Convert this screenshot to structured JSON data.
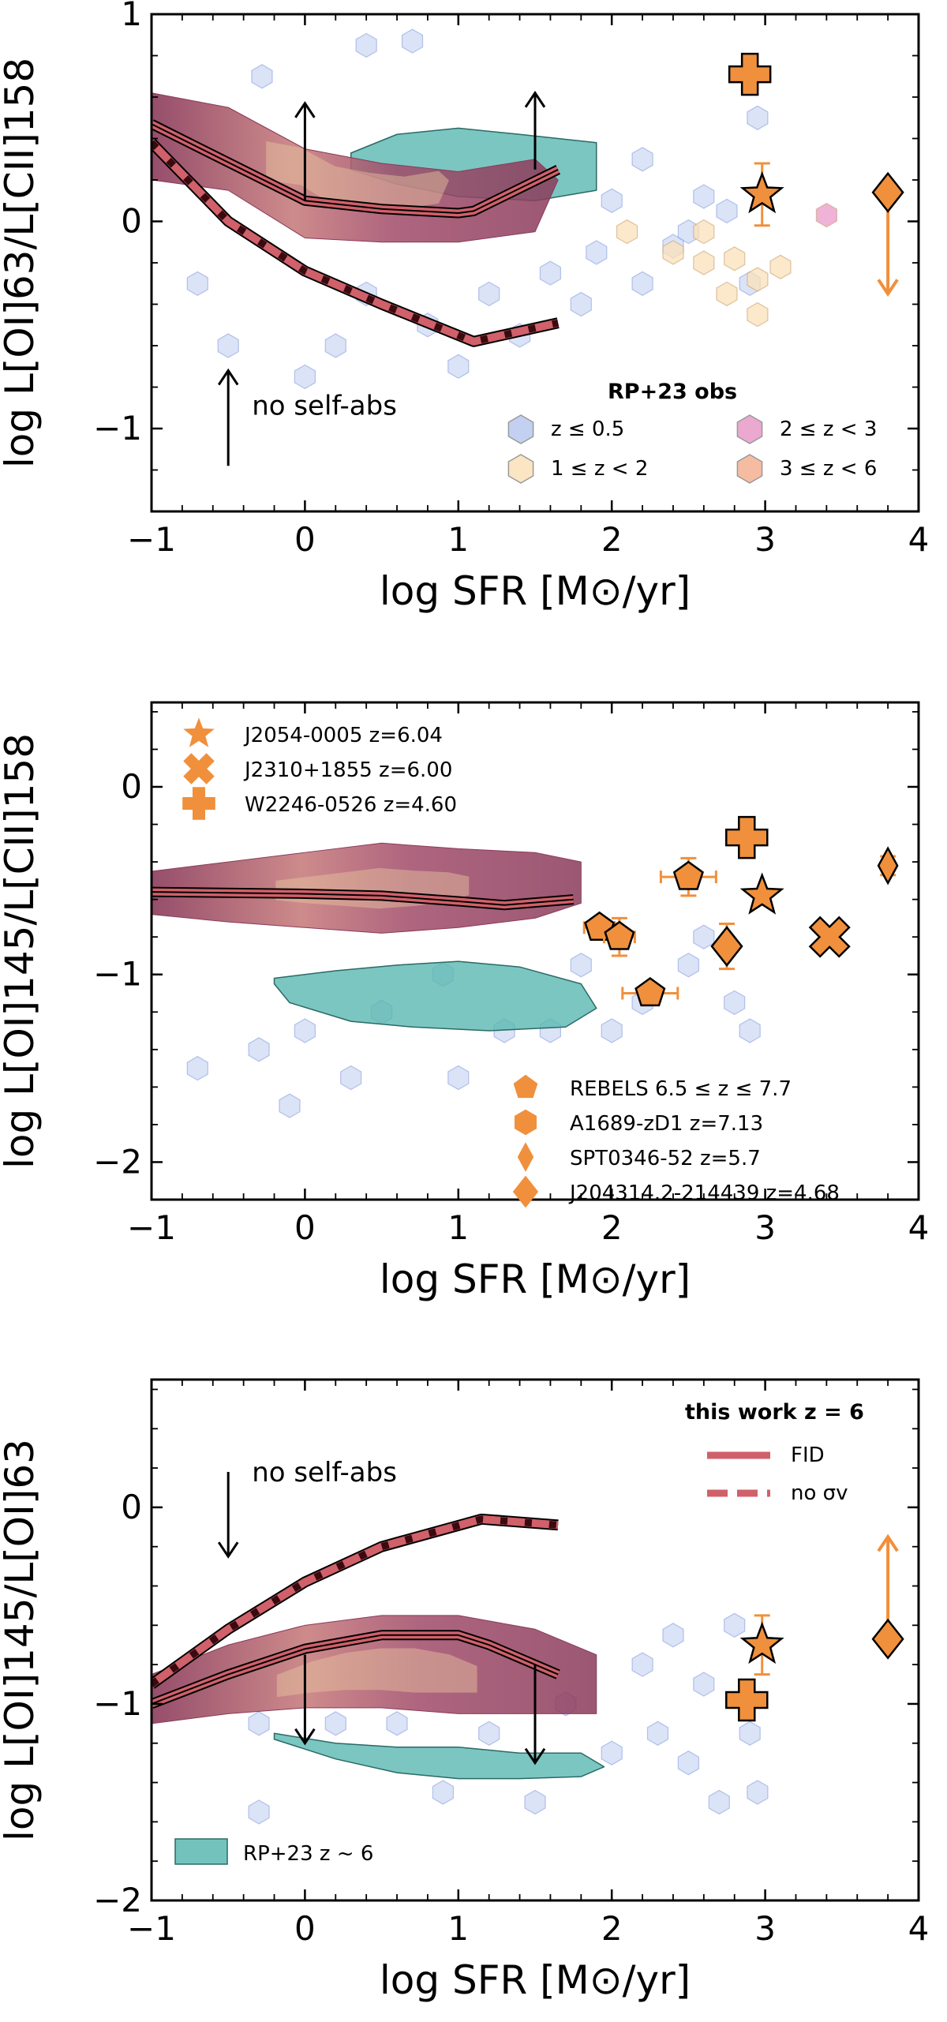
{
  "colors": {
    "fid": "#d0606a",
    "fid_dark": "#3a0a10",
    "model_cloud": "#8a3a5a",
    "model_cloud_inner": "#e8c8a0",
    "rp23_z6": "#5ab8b0",
    "hex_z05": "#b8c8f0",
    "hex_z05_edge": "#8aa0e0",
    "hex_z1_2": "#fbe0b8",
    "hex_z2_3": "#e89ac8",
    "hex_z3_6": "#f4b090",
    "obs_orange": "#f0903c",
    "errorbar_orange": "#f0903c"
  },
  "chart_data": [
    {
      "type": "scatter",
      "panel": "top",
      "xlabel": "log SFR [M⊙/yr]",
      "ylabel": "log L[OI]63/L[CII]158",
      "xlim": [
        -1,
        4
      ],
      "ylim": [
        -1.4,
        1.0
      ],
      "x_ticks": [
        "−1",
        "0",
        "1",
        "2",
        "3",
        "4"
      ],
      "y_ticks": [
        {
          "v": -1,
          "label": "−1"
        },
        {
          "v": 0,
          "label": "0"
        },
        {
          "v": 1,
          "label": "1"
        }
      ],
      "fid_line": {
        "x": [
          -1,
          0,
          0.5,
          1,
          1.1,
          1.65
        ],
        "y": [
          0.47,
          0.1,
          0.06,
          0.04,
          0.05,
          0.25
        ]
      },
      "no_sigma_line": {
        "x": [
          -1,
          -0.5,
          0,
          0.5,
          1.1,
          1.65
        ],
        "y": [
          0.38,
          0.0,
          -0.24,
          -0.4,
          -0.58,
          -0.49
        ]
      },
      "model_cloud": {
        "x": [
          -1,
          -0.5,
          0,
          0.5,
          1,
          1.5,
          1.65,
          1.5,
          1,
          0.5,
          0,
          -0.5,
          -1
        ],
        "y": [
          0.62,
          0.55,
          0.35,
          0.28,
          0.24,
          0.3,
          0.2,
          -0.05,
          -0.1,
          -0.1,
          -0.08,
          0.15,
          0.2
        ]
      },
      "rp23_z6_blob": {
        "x": [
          0.3,
          0.6,
          1.0,
          1.4,
          1.9,
          1.9,
          1.5,
          1.0,
          0.6,
          0.3
        ],
        "y": [
          0.33,
          0.42,
          0.45,
          0.42,
          0.38,
          0.15,
          0.1,
          0.12,
          0.18,
          0.25
        ]
      },
      "upper_arrows": [
        {
          "x": 0.0,
          "y0": 0.1,
          "y1": 0.57
        },
        {
          "x": 1.5,
          "y0": 0.25,
          "y1": 0.62
        }
      ],
      "annotation": {
        "text": "no self-abs",
        "x": -0.5,
        "y_arrow_from": -1.18,
        "y_arrow_to": -0.72,
        "direction": "up"
      },
      "hex_points": [
        {
          "x": 0.7,
          "y": 0.87,
          "grp": "z05"
        },
        {
          "x": 0.4,
          "y": 0.85,
          "grp": "z05"
        },
        {
          "x": -0.28,
          "y": 0.7,
          "grp": "z05"
        },
        {
          "x": 2.4,
          "y": -0.12,
          "grp": "z05"
        },
        {
          "x": 2.6,
          "y": 0.12,
          "grp": "z05"
        },
        {
          "x": 2.2,
          "y": -0.3,
          "grp": "z05"
        },
        {
          "x": 2.5,
          "y": -0.05,
          "grp": "z05"
        },
        {
          "x": 2.75,
          "y": 0.05,
          "grp": "z05"
        },
        {
          "x": 1.8,
          "y": -0.4,
          "grp": "z05"
        },
        {
          "x": 1.6,
          "y": -0.25,
          "grp": "z05"
        },
        {
          "x": 1.2,
          "y": -0.35,
          "grp": "z05"
        },
        {
          "x": 0.8,
          "y": -0.5,
          "grp": "z05"
        },
        {
          "x": 0.2,
          "y": -0.6,
          "grp": "z05"
        },
        {
          "x": -0.5,
          "y": -0.6,
          "grp": "z05"
        },
        {
          "x": -0.7,
          "y": -0.3,
          "grp": "z05"
        },
        {
          "x": 0.4,
          "y": -0.35,
          "grp": "z05"
        },
        {
          "x": 1.4,
          "y": -0.55,
          "grp": "z05"
        },
        {
          "x": 2.0,
          "y": 0.1,
          "grp": "z05"
        },
        {
          "x": 2.2,
          "y": 0.3,
          "grp": "z05"
        },
        {
          "x": 1.0,
          "y": -0.7,
          "grp": "z05"
        },
        {
          "x": 0.0,
          "y": -0.75,
          "grp": "z05"
        },
        {
          "x": 2.9,
          "y": -0.3,
          "grp": "z05"
        },
        {
          "x": 2.95,
          "y": 0.5,
          "grp": "z05"
        },
        {
          "x": 1.9,
          "y": -0.15,
          "grp": "z05"
        },
        {
          "x": 2.1,
          "y": -0.05,
          "grp": "z1_2"
        },
        {
          "x": 2.4,
          "y": -0.15,
          "grp": "z1_2"
        },
        {
          "x": 2.6,
          "y": -0.2,
          "grp": "z1_2"
        },
        {
          "x": 2.8,
          "y": -0.18,
          "grp": "z1_2"
        },
        {
          "x": 2.95,
          "y": -0.28,
          "grp": "z1_2"
        },
        {
          "x": 3.1,
          "y": -0.22,
          "grp": "z1_2"
        },
        {
          "x": 2.75,
          "y": -0.35,
          "grp": "z1_2"
        },
        {
          "x": 2.95,
          "y": -0.45,
          "grp": "z1_2"
        },
        {
          "x": 2.6,
          "y": -0.05,
          "grp": "z1_2"
        },
        {
          "x": 3.4,
          "y": 0.03,
          "grp": "z2_3"
        }
      ],
      "orange_markers": [
        {
          "x": 2.9,
          "y": 0.71,
          "marker": "plus",
          "yerr": 0
        },
        {
          "x": 2.98,
          "y": 0.13,
          "marker": "star",
          "yerr": 0.15
        },
        {
          "x": 3.8,
          "y": 0.14,
          "marker": "diamond",
          "limit": "down",
          "y_to": -0.35
        }
      ],
      "legend": {
        "title": "RP+23 obs",
        "entries": [
          {
            "label": "z ≤ 0.5",
            "grp": "z05"
          },
          {
            "label": "2 ≤ z < 3",
            "grp": "z2_3"
          },
          {
            "label": "1 ≤ z < 2",
            "grp": "z1_2"
          },
          {
            "label": "3 ≤ z < 6",
            "grp": "z3_6"
          }
        ]
      }
    },
    {
      "type": "scatter",
      "panel": "middle",
      "xlabel": "log SFR [M⊙/yr]",
      "ylabel": "log L[OI]145/L[CII]158",
      "xlim": [
        -1,
        4
      ],
      "ylim": [
        -2.2,
        0.45
      ],
      "x_ticks": [
        "−1",
        "0",
        "1",
        "2",
        "3",
        "4"
      ],
      "y_ticks": [
        {
          "v": -2,
          "label": "−2"
        },
        {
          "v": -1,
          "label": "−1"
        },
        {
          "v": 0,
          "label": "0"
        }
      ],
      "fid_line": {
        "x": [
          -1,
          0,
          0.5,
          1,
          1.3,
          1.75
        ],
        "y": [
          -0.56,
          -0.57,
          -0.58,
          -0.61,
          -0.63,
          -0.6
        ]
      },
      "model_cloud": {
        "x": [
          -1,
          -0.5,
          0,
          0.5,
          1,
          1.5,
          1.8,
          1.8,
          1.5,
          1.0,
          0.5,
          0.0,
          -0.5,
          -1
        ],
        "y": [
          -0.45,
          -0.4,
          -0.35,
          -0.3,
          -0.33,
          -0.35,
          -0.4,
          -0.62,
          -0.7,
          -0.75,
          -0.78,
          -0.75,
          -0.72,
          -0.68
        ]
      },
      "rp23_z6_blob": {
        "x": [
          -0.2,
          0.2,
          0.6,
          1.0,
          1.4,
          1.8,
          1.9,
          1.7,
          1.2,
          0.7,
          0.3,
          -0.1,
          -0.2
        ],
        "y": [
          -1.02,
          -0.98,
          -0.95,
          -0.93,
          -0.96,
          -1.05,
          -1.18,
          -1.28,
          -1.3,
          -1.28,
          -1.25,
          -1.15,
          -1.05
        ]
      },
      "hex_points": [
        {
          "x": 0.9,
          "y": -1.0,
          "grp": "z05"
        },
        {
          "x": 1.3,
          "y": -1.3,
          "grp": "z05"
        },
        {
          "x": 0.5,
          "y": -1.2,
          "grp": "z05"
        },
        {
          "x": 0.0,
          "y": -1.3,
          "grp": "z05"
        },
        {
          "x": -0.3,
          "y": -1.4,
          "grp": "z05"
        },
        {
          "x": -0.1,
          "y": -1.7,
          "grp": "z05"
        },
        {
          "x": -0.7,
          "y": -1.5,
          "grp": "z05"
        },
        {
          "x": 2.0,
          "y": -1.3,
          "grp": "z05"
        },
        {
          "x": 2.5,
          "y": -0.95,
          "grp": "z05"
        },
        {
          "x": 2.8,
          "y": -1.15,
          "grp": "z05"
        },
        {
          "x": 2.6,
          "y": -0.8,
          "grp": "z05"
        },
        {
          "x": 1.8,
          "y": -0.95,
          "grp": "z05"
        },
        {
          "x": 2.2,
          "y": -1.15,
          "grp": "z05"
        },
        {
          "x": 1.6,
          "y": -1.3,
          "grp": "z05"
        },
        {
          "x": 1.0,
          "y": -1.55,
          "grp": "z05"
        },
        {
          "x": 0.3,
          "y": -1.55,
          "grp": "z05"
        },
        {
          "x": 2.9,
          "y": -1.3,
          "grp": "z05"
        }
      ],
      "orange_markers": [
        {
          "x": 1.92,
          "y": -0.75,
          "marker": "pentagon",
          "xerr": 0.1,
          "yerr": 0.05
        },
        {
          "x": 2.05,
          "y": -0.8,
          "marker": "pentagon",
          "xerr": 0.1,
          "yerr": 0.1
        },
        {
          "x": 2.25,
          "y": -1.1,
          "marker": "pentagon",
          "xerr": 0.18,
          "yerr": 0.05
        },
        {
          "x": 2.5,
          "y": -0.48,
          "marker": "pentagon",
          "xerr": 0.18,
          "yerr": 0.1
        },
        {
          "x": 2.88,
          "y": -0.27,
          "marker": "plus"
        },
        {
          "x": 2.98,
          "y": -0.58,
          "marker": "star"
        },
        {
          "x": 2.75,
          "y": -0.85,
          "marker": "diamond",
          "yerr": 0.12
        },
        {
          "x": 3.42,
          "y": -0.8,
          "marker": "cross"
        },
        {
          "x": 3.8,
          "y": -0.42,
          "marker": "thin-diamond",
          "yerr": 0.05
        }
      ],
      "legend_top": [
        {
          "marker": "star",
          "label": "J2054-0005 z=6.04"
        },
        {
          "marker": "cross",
          "label": "J2310+1855 z=6.00"
        },
        {
          "marker": "plus",
          "label": "W2246-0526 z=4.60"
        }
      ],
      "legend_bottom": [
        {
          "marker": "pentagon",
          "label": "REBELS 6.5 ≤ z ≤ 7.7"
        },
        {
          "marker": "hexagon",
          "label": "A1689-zD1 z=7.13"
        },
        {
          "marker": "thin-diamond",
          "label": "SPT0346-52 z=5.7"
        },
        {
          "marker": "diamond",
          "label": "J204314.2-214439 z=4.68"
        }
      ]
    },
    {
      "type": "scatter",
      "panel": "bottom",
      "xlabel": "log SFR [M⊙/yr]",
      "ylabel": "log L[OI]145/L[OI]63",
      "xlim": [
        -1,
        4
      ],
      "ylim": [
        -2.0,
        0.65
      ],
      "x_ticks": [
        "−1",
        "0",
        "1",
        "2",
        "3",
        "4"
      ],
      "y_ticks": [
        {
          "v": -2,
          "label": "−2"
        },
        {
          "v": -1,
          "label": "−1"
        },
        {
          "v": 0,
          "label": "0"
        }
      ],
      "fid_line": {
        "x": [
          -1,
          -0.5,
          0,
          0.5,
          1.0,
          1.2,
          1.65
        ],
        "y": [
          -1.0,
          -0.85,
          -0.72,
          -0.65,
          -0.65,
          -0.7,
          -0.85
        ]
      },
      "no_sigma_line": {
        "x": [
          -1,
          -0.5,
          0,
          0.5,
          1.15,
          1.65
        ],
        "y": [
          -0.9,
          -0.62,
          -0.38,
          -0.2,
          -0.06,
          -0.09
        ]
      },
      "model_cloud": {
        "x": [
          -1,
          -0.5,
          0,
          0.5,
          1.0,
          1.5,
          1.9,
          1.9,
          1.5,
          1.0,
          0.5,
          0.0,
          -0.5,
          -1
        ],
        "y": [
          -0.85,
          -0.7,
          -0.6,
          -0.55,
          -0.55,
          -0.62,
          -0.75,
          -1.05,
          -1.05,
          -1.05,
          -1.02,
          -1.02,
          -1.05,
          -1.1
        ]
      },
      "rp23_z6_blob": {
        "x": [
          -0.2,
          0.2,
          0.6,
          1.0,
          1.4,
          1.8,
          1.95,
          1.8,
          1.4,
          1.0,
          0.6,
          0.2,
          -0.2
        ],
        "y": [
          -1.15,
          -1.2,
          -1.22,
          -1.22,
          -1.25,
          -1.25,
          -1.32,
          -1.37,
          -1.38,
          -1.38,
          -1.35,
          -1.28,
          -1.18
        ]
      },
      "lower_arrows": [
        {
          "x": 0.0,
          "y0": -0.75,
          "y1": -1.2
        },
        {
          "x": 1.5,
          "y0": -0.8,
          "y1": -1.3
        }
      ],
      "annotation": {
        "text": "no self-abs",
        "x": -0.5,
        "y_arrow_from": 0.18,
        "y_arrow_to": -0.25,
        "direction": "down"
      },
      "hex_points": [
        {
          "x": 2.3,
          "y": -1.15,
          "grp": "z05"
        },
        {
          "x": 2.6,
          "y": -0.9,
          "grp": "z05"
        },
        {
          "x": 2.8,
          "y": -0.6,
          "grp": "z05"
        },
        {
          "x": 2.5,
          "y": -1.3,
          "grp": "z05"
        },
        {
          "x": 2.0,
          "y": -1.25,
          "grp": "z05"
        },
        {
          "x": 1.7,
          "y": -1.0,
          "grp": "z05"
        },
        {
          "x": 2.9,
          "y": -1.15,
          "grp": "z05"
        },
        {
          "x": 2.7,
          "y": -1.5,
          "grp": "z05"
        },
        {
          "x": 2.2,
          "y": -0.8,
          "grp": "z05"
        },
        {
          "x": 2.95,
          "y": -1.45,
          "grp": "z05"
        },
        {
          "x": 2.4,
          "y": -0.65,
          "grp": "z05"
        },
        {
          "x": 0.2,
          "y": -1.1,
          "grp": "z05"
        },
        {
          "x": 0.6,
          "y": -1.1,
          "grp": "z05"
        },
        {
          "x": 1.2,
          "y": -1.15,
          "grp": "z05"
        },
        {
          "x": -0.3,
          "y": -1.1,
          "grp": "z05"
        },
        {
          "x": 0.9,
          "y": -1.45,
          "grp": "z05"
        },
        {
          "x": 1.5,
          "y": -1.5,
          "grp": "z05"
        },
        {
          "x": -0.3,
          "y": -1.55,
          "grp": "z05"
        }
      ],
      "orange_markers": [
        {
          "x": 2.88,
          "y": -0.98,
          "marker": "plus"
        },
        {
          "x": 2.98,
          "y": -0.7,
          "marker": "star",
          "yerr": 0.15
        },
        {
          "x": 3.8,
          "y": -0.67,
          "marker": "diamond",
          "limit": "up",
          "y_to": -0.15
        }
      ],
      "legend_top": {
        "title": "this work z = 6",
        "entries": [
          {
            "style": "solid",
            "label": "FID"
          },
          {
            "style": "dashed",
            "label": "no σv"
          }
        ]
      },
      "legend_bottom": {
        "label": "RP+23 z ~ 6"
      }
    }
  ]
}
